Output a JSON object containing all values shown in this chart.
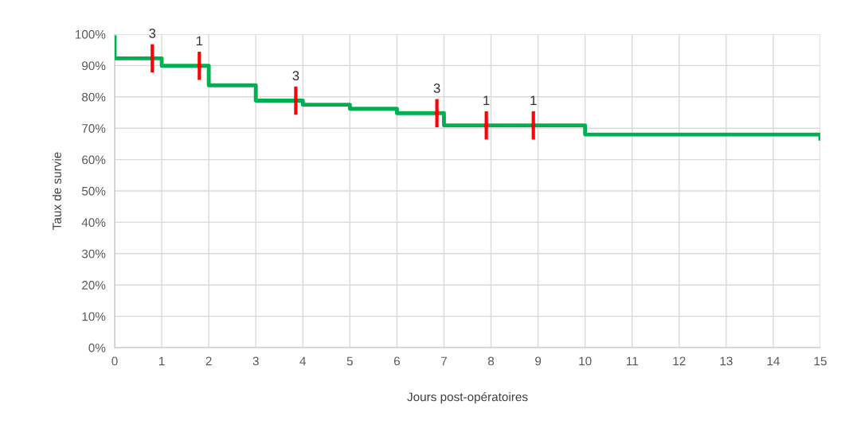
{
  "chart_data": {
    "type": "step",
    "xlabel": "Jours post-opératoires",
    "ylabel": "Taux de survie",
    "xlim": [
      0,
      15
    ],
    "xticks": [
      0,
      1,
      2,
      3,
      4,
      5,
      6,
      7,
      8,
      9,
      10,
      11,
      12,
      13,
      14,
      15
    ],
    "ylim": [
      0,
      100
    ],
    "yticks": [
      {
        "value": 0,
        "label": "0%"
      },
      {
        "value": 10,
        "label": "10%"
      },
      {
        "value": 20,
        "label": "20%"
      },
      {
        "value": 30,
        "label": "30%"
      },
      {
        "value": 40,
        "label": "40%"
      },
      {
        "value": 50,
        "label": "50%"
      },
      {
        "value": 60,
        "label": "60%"
      },
      {
        "value": 70,
        "label": "70%"
      },
      {
        "value": 80,
        "label": "80%"
      },
      {
        "value": 90,
        "label": "90%"
      },
      {
        "value": 100,
        "label": "100%"
      }
    ],
    "grid": true,
    "legend": false,
    "series": [
      {
        "color": "#00b050",
        "x": [
          0,
          0,
          1,
          2,
          3,
          4,
          5,
          6,
          7,
          10,
          15,
          15
        ],
        "values": [
          99,
          92.3,
          89.9,
          83.7,
          78.8,
          77.5,
          76.2,
          74.8,
          70.9,
          68.0,
          66.7,
          66.7
        ]
      },
      {
        "type": "scatter",
        "color": "#ff0000",
        "x": [
          0.8,
          1.8,
          3.85,
          6.85,
          7.9,
          8.9
        ],
        "values": [
          92.3,
          89.9,
          78.8,
          74.8,
          70.9,
          70.9
        ],
        "errors": [
          4.5,
          4.5,
          4.5,
          4.5,
          4.5,
          4.5
        ]
      }
    ],
    "annotations": [
      {
        "text": "3",
        "x": 0.8,
        "y": 92.3
      },
      {
        "text": "1",
        "x": 1.8,
        "y": 89.9
      },
      {
        "text": "3",
        "x": 3.85,
        "y": 78.8
      },
      {
        "text": "3",
        "x": 6.85,
        "y": 74.8
      },
      {
        "text": "1",
        "x": 7.9,
        "y": 70.9
      },
      {
        "text": "1",
        "x": 8.9,
        "y": 70.9
      }
    ]
  }
}
